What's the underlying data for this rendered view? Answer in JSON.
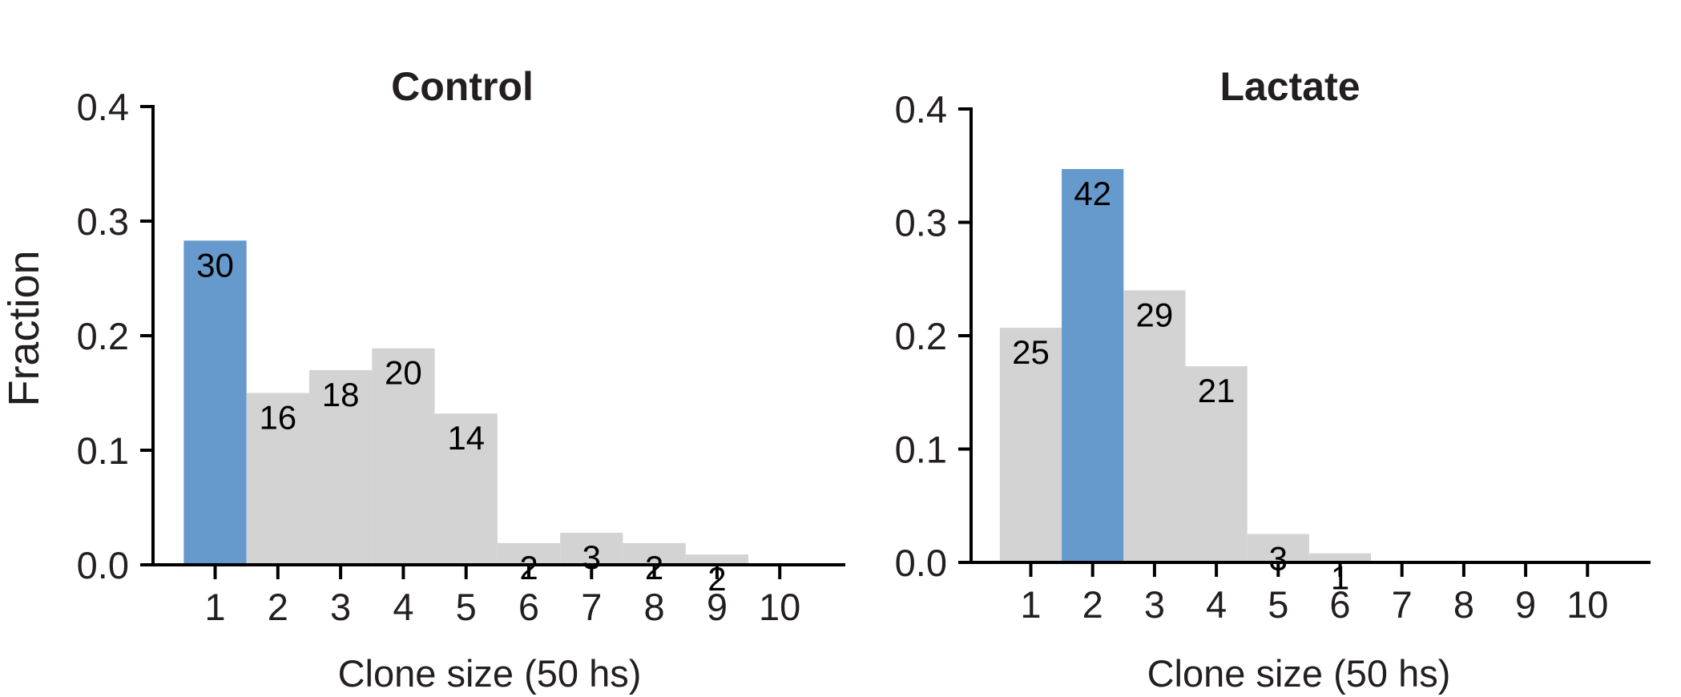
{
  "colors": {
    "highlight": "#6699cc",
    "bar": "#d3d3d3",
    "axis": "#000000",
    "text": "#231f20"
  },
  "shared_ylabel": "Fraction",
  "chart_data": [
    {
      "type": "bar",
      "title": "Control",
      "xlabel": "Clone size (50 hs)",
      "ylabel": "Fraction",
      "categories": [
        "1",
        "2",
        "3",
        "4",
        "5",
        "6",
        "7",
        "8",
        "9",
        "10"
      ],
      "values": [
        0.283,
        0.15,
        0.17,
        0.189,
        0.132,
        0.019,
        0.028,
        0.019,
        0.009,
        0.0
      ],
      "data_labels": [
        "30",
        "16",
        "18",
        "20",
        "14",
        "2",
        "3",
        "2",
        "2",
        ""
      ],
      "highlight_index": 0,
      "ylim": [
        0,
        0.4
      ],
      "yticks": [
        "0.0",
        "0.1",
        "0.2",
        "0.3",
        "0.4"
      ],
      "grid": false,
      "legend": "none"
    },
    {
      "type": "bar",
      "title": "Lactate",
      "xlabel": "Clone size (50 hs)",
      "ylabel": "",
      "categories": [
        "1",
        "2",
        "3",
        "4",
        "5",
        "6",
        "7",
        "8",
        "9",
        "10"
      ],
      "values": [
        0.207,
        0.347,
        0.24,
        0.173,
        0.025,
        0.008,
        0.0,
        0.0,
        0.0,
        0.0
      ],
      "data_labels": [
        "25",
        "42",
        "29",
        "21",
        "3",
        "1",
        "",
        "",
        "",
        ""
      ],
      "highlight_index": 1,
      "ylim": [
        0,
        0.4
      ],
      "yticks": [
        "0.0",
        "0.1",
        "0.2",
        "0.3",
        "0.4"
      ],
      "grid": false,
      "legend": "none"
    }
  ]
}
